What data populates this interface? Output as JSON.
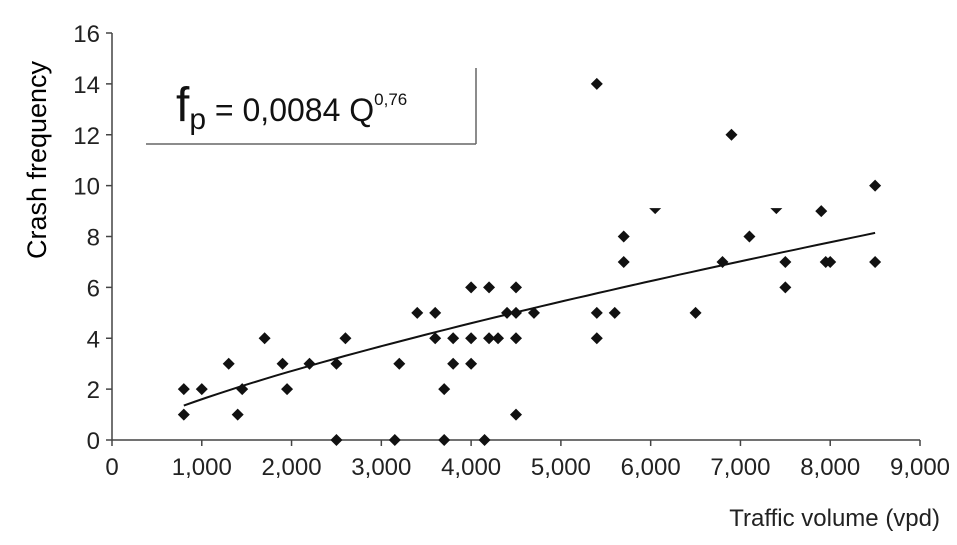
{
  "chart_data": {
    "type": "scatter",
    "xlabel": "Traffic volume (vpd)",
    "ylabel": "Crash frequency",
    "xlim": [
      0,
      9000
    ],
    "ylim": [
      0,
      16
    ],
    "x_ticks": [
      "0",
      "1,000",
      "2,000",
      "3,000",
      "4,000",
      "5,000",
      "6,000",
      "7,000",
      "8,000",
      "9,000"
    ],
    "y_ticks": [
      "0",
      "2",
      "4",
      "6",
      "8",
      "10",
      "12",
      "14",
      "16"
    ],
    "x_tick_values": [
      0,
      1000,
      2000,
      3000,
      4000,
      5000,
      6000,
      7000,
      8000,
      9000
    ],
    "y_tick_values": [
      0,
      2,
      4,
      6,
      8,
      10,
      12,
      14,
      16
    ],
    "grid": false,
    "annotation": {
      "f": "f",
      "sub": "p",
      "eq": " = 0,0084 Q",
      "exp": "0,76"
    },
    "trendline": {
      "formula": "0.0084 * Q^0.76",
      "coef": 0.0084,
      "exponent": 0.76,
      "x_range": [
        800,
        8500
      ]
    },
    "series": [
      {
        "points": [
          [
            800,
            1
          ],
          [
            800,
            2
          ],
          [
            1000,
            2
          ],
          [
            1300,
            3
          ],
          [
            1400,
            1
          ],
          [
            1450,
            2
          ],
          [
            1700,
            4
          ],
          [
            1900,
            3
          ],
          [
            1950,
            2
          ],
          [
            2200,
            3
          ],
          [
            2500,
            3
          ],
          [
            2500,
            0
          ],
          [
            2600,
            4
          ],
          [
            3150,
            0
          ],
          [
            3200,
            3
          ],
          [
            3400,
            5
          ],
          [
            3600,
            4
          ],
          [
            3600,
            5
          ],
          [
            3700,
            2
          ],
          [
            3700,
            0
          ],
          [
            3800,
            3
          ],
          [
            3800,
            4
          ],
          [
            4000,
            6
          ],
          [
            4000,
            4
          ],
          [
            4000,
            3
          ],
          [
            4150,
            0
          ],
          [
            4200,
            6
          ],
          [
            4200,
            4
          ],
          [
            4300,
            4
          ],
          [
            4400,
            5
          ],
          [
            4500,
            6
          ],
          [
            4500,
            5
          ],
          [
            4500,
            4
          ],
          [
            4500,
            1
          ],
          [
            4700,
            5
          ],
          [
            5400,
            14
          ],
          [
            5400,
            5
          ],
          [
            5400,
            4
          ],
          [
            5600,
            5
          ],
          [
            5700,
            8
          ],
          [
            5700,
            7
          ],
          [
            6500,
            5
          ],
          [
            6800,
            7
          ],
          [
            6900,
            12
          ],
          [
            7100,
            8
          ],
          [
            7500,
            7
          ],
          [
            7500,
            6
          ],
          [
            7900,
            9
          ],
          [
            7950,
            7
          ],
          [
            8000,
            7
          ],
          [
            8500,
            10
          ],
          [
            8500,
            7
          ]
        ]
      },
      {
        "marker": "triangle-down",
        "points": [
          [
            6050,
            9
          ],
          [
            7400,
            9
          ]
        ]
      }
    ]
  }
}
